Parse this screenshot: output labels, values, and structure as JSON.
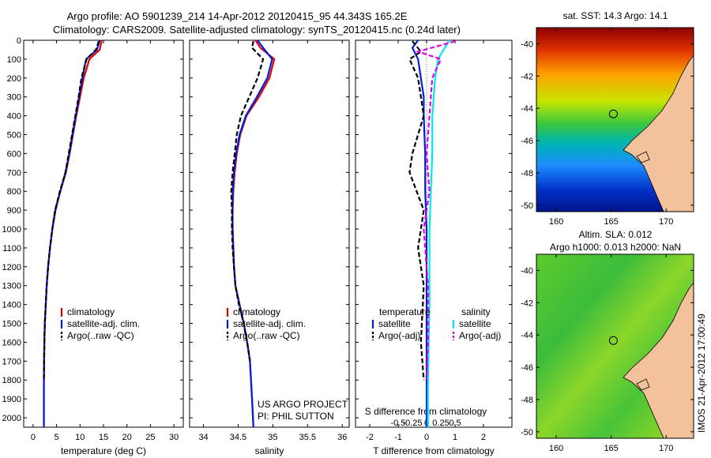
{
  "figure": {
    "title_line1": "Argo profile: AO 5901239_214 14-Apr-2012 20120415_95 44.343S 165.2E",
    "title_line2": "Climatology: CARS2009. Satellite-adjusted climatology: synTS_20120415.nc (0.24d later)",
    "credit": "IMOS 21-Apr-2012 17:00:49",
    "project_line1": "US ARGO PROJECT",
    "project_line2": "PI: PHIL SUTTON"
  },
  "maps": {
    "sst_title": "sat. SST: 14.3 Argo: 14.1",
    "sla_title_line1": "Altim. SLA: 0.012",
    "sla_title_line2": "Argo h1000: 0.013 h2000: NaN",
    "lat_ticks": [
      "-40",
      "-42",
      "-44",
      "-46",
      "-48",
      "-50"
    ],
    "lon_ticks": [
      "160",
      "165",
      "170"
    ],
    "float_location": {
      "lon": 165.2,
      "lat": -44.343
    }
  },
  "chart_data": [
    {
      "type": "line",
      "id": "temperature",
      "xlabel": "temperature (deg C)",
      "ylabel": "",
      "xlim": [
        -2,
        32
      ],
      "ylim": [
        2050,
        0
      ],
      "xticks": [
        0,
        5,
        10,
        15,
        20,
        25,
        30
      ],
      "yticks": [
        0,
        100,
        200,
        300,
        400,
        500,
        600,
        700,
        800,
        900,
        1000,
        1100,
        1200,
        1300,
        1400,
        1500,
        1600,
        1700,
        1800,
        1900,
        2000
      ],
      "legend": [
        "climatology",
        "satellite-adj. clim.",
        "Argo(..raw -QC)"
      ],
      "series": [
        {
          "name": "climatology",
          "color": "#e00000",
          "dash": "",
          "x": [
            14.6,
            14.2,
            12.0,
            10.8,
            10.0,
            9.2,
            8.5,
            7.8,
            7.0,
            5.8,
            4.8,
            4.1,
            3.6,
            3.2,
            2.9,
            2.7,
            2.5,
            2.4,
            2.3,
            2.3
          ],
          "y": [
            0,
            50,
            100,
            200,
            300,
            400,
            500,
            600,
            700,
            800,
            900,
            1000,
            1100,
            1200,
            1300,
            1400,
            1500,
            1600,
            1800,
            2050
          ]
        },
        {
          "name": "satellite-adj. clim.",
          "color": "#0020e0",
          "dash": "",
          "x": [
            14.2,
            13.6,
            11.3,
            10.5,
            9.8,
            9.1,
            8.4,
            7.7,
            6.9,
            5.8,
            4.7,
            4.1,
            3.6,
            3.2,
            2.9,
            2.7,
            2.5,
            2.4,
            2.3,
            2.3
          ],
          "y": [
            0,
            50,
            100,
            200,
            300,
            400,
            500,
            600,
            700,
            800,
            900,
            1000,
            1100,
            1200,
            1300,
            1400,
            1500,
            1600,
            1800,
            2050
          ]
        },
        {
          "name": "Argo(..raw -QC)",
          "color": "#000000",
          "dash": "6,3",
          "x": [
            14.0,
            13.4,
            11.4,
            10.3,
            9.7,
            9.0,
            8.3,
            7.6,
            6.9,
            5.7,
            4.7,
            4.1,
            3.6,
            3.2,
            2.9,
            2.7,
            2.5,
            2.4,
            2.3
          ],
          "y": [
            5,
            50,
            100,
            200,
            300,
            400,
            500,
            600,
            700,
            800,
            900,
            1000,
            1100,
            1200,
            1300,
            1400,
            1500,
            1600,
            1800
          ]
        }
      ]
    },
    {
      "type": "line",
      "id": "salinity",
      "xlabel": "salinity",
      "ylabel": "",
      "xlim": [
        33.8,
        36.1
      ],
      "ylim": [
        2050,
        0
      ],
      "xticks": [
        34,
        34.5,
        35,
        35.5,
        36
      ],
      "legend": [
        "climatology",
        "satellite-adj. clim.",
        "Argo(..raw -QC)"
      ],
      "series": [
        {
          "name": "climatology",
          "color": "#e00000",
          "dash": "",
          "x": [
            34.75,
            34.82,
            35.02,
            34.95,
            34.8,
            34.62,
            34.53,
            34.48,
            34.45,
            34.43,
            34.42,
            34.42,
            34.43,
            34.44,
            34.46,
            34.52,
            34.58,
            34.63,
            34.67,
            34.7,
            34.72
          ],
          "y": [
            0,
            40,
            100,
            200,
            300,
            400,
            500,
            600,
            700,
            800,
            900,
            1000,
            1100,
            1200,
            1300,
            1400,
            1500,
            1600,
            1700,
            1900,
            2050
          ]
        },
        {
          "name": "satellite-adj. clim.",
          "color": "#0020e0",
          "dash": "",
          "x": [
            34.78,
            34.86,
            34.99,
            34.92,
            34.77,
            34.61,
            34.52,
            34.47,
            34.44,
            34.42,
            34.42,
            34.42,
            34.43,
            34.44,
            34.46,
            34.52,
            34.58,
            34.63,
            34.67,
            34.7,
            34.72
          ],
          "y": [
            0,
            40,
            100,
            200,
            300,
            400,
            500,
            600,
            700,
            800,
            900,
            1000,
            1100,
            1200,
            1300,
            1400,
            1500,
            1600,
            1700,
            1900,
            2050
          ]
        },
        {
          "name": "Argo(..raw -QC)",
          "color": "#000000",
          "dash": "6,3",
          "x": [
            34.72,
            34.7,
            34.86,
            34.78,
            34.66,
            34.54,
            34.48,
            34.45,
            34.42,
            34.4,
            34.41,
            34.41,
            34.42,
            34.44,
            34.46,
            34.51,
            34.58,
            34.63,
            34.67
          ],
          "y": [
            5,
            40,
            100,
            200,
            300,
            400,
            500,
            600,
            700,
            800,
            900,
            1000,
            1100,
            1200,
            1300,
            1400,
            1500,
            1600,
            1700
          ]
        }
      ]
    },
    {
      "type": "line",
      "id": "difference",
      "xlabel": "T difference from climatology",
      "xlabel_top": "S difference from climatology",
      "ylabel": "",
      "xlim": [
        -2.5,
        3
      ],
      "ylim": [
        2050,
        0
      ],
      "xticks": [
        -2,
        -1,
        0,
        1,
        2
      ],
      "xticks_salinity": [
        "-0.5",
        "-0.25",
        "0",
        "0.25",
        "0.5"
      ],
      "legend_temperature_header": "temperature",
      "legend_salinity_header": "salinity",
      "legend": [
        "satellite",
        "Argo(-adj)",
        "satellite",
        "Argo(-adj)"
      ],
      "series": [
        {
          "name": "satellite",
          "group": "temperature",
          "color": "#0020e0",
          "dash": "",
          "x": [
            -0.3,
            -0.5,
            -0.3,
            -0.2,
            -0.1,
            -0.1,
            -0.05,
            -0.05,
            0,
            0,
            0,
            0
          ],
          "y": [
            0,
            40,
            100,
            200,
            300,
            400,
            600,
            800,
            1000,
            1400,
            1800,
            2050
          ]
        },
        {
          "name": "Argo(-adj)",
          "group": "temperature",
          "color": "#000000",
          "dash": "6,3",
          "x": [
            -0.5,
            -0.2,
            -0.6,
            -0.3,
            -0.2,
            -0.1,
            -0.5,
            -0.6,
            -0.1,
            -0.3,
            -0.1,
            -0.2,
            -0.1
          ],
          "y": [
            5,
            60,
            100,
            200,
            300,
            400,
            600,
            700,
            900,
            1100,
            1300,
            1600,
            1800
          ]
        },
        {
          "name": "satellite",
          "group": "salinity",
          "color": "#00e8f0",
          "dash": "",
          "x": [
            0.8,
            0.6,
            0.4,
            0.3,
            0.2,
            0.2,
            0.15,
            0.1,
            0.1,
            0.05,
            0.05
          ],
          "y": [
            0,
            50,
            100,
            200,
            400,
            600,
            800,
            1000,
            1400,
            1800,
            2050
          ]
        },
        {
          "name": "Argo(-adj)",
          "group": "salinity",
          "color": "#e000e0",
          "dash": "6,3",
          "x": [
            1.0,
            -0.3,
            0.5,
            0.2,
            0.1,
            0,
            0.1,
            -0.1,
            0.05,
            0.05,
            0
          ],
          "y": [
            5,
            60,
            100,
            200,
            400,
            600,
            800,
            1000,
            1300,
            1600,
            1800
          ]
        }
      ]
    }
  ]
}
